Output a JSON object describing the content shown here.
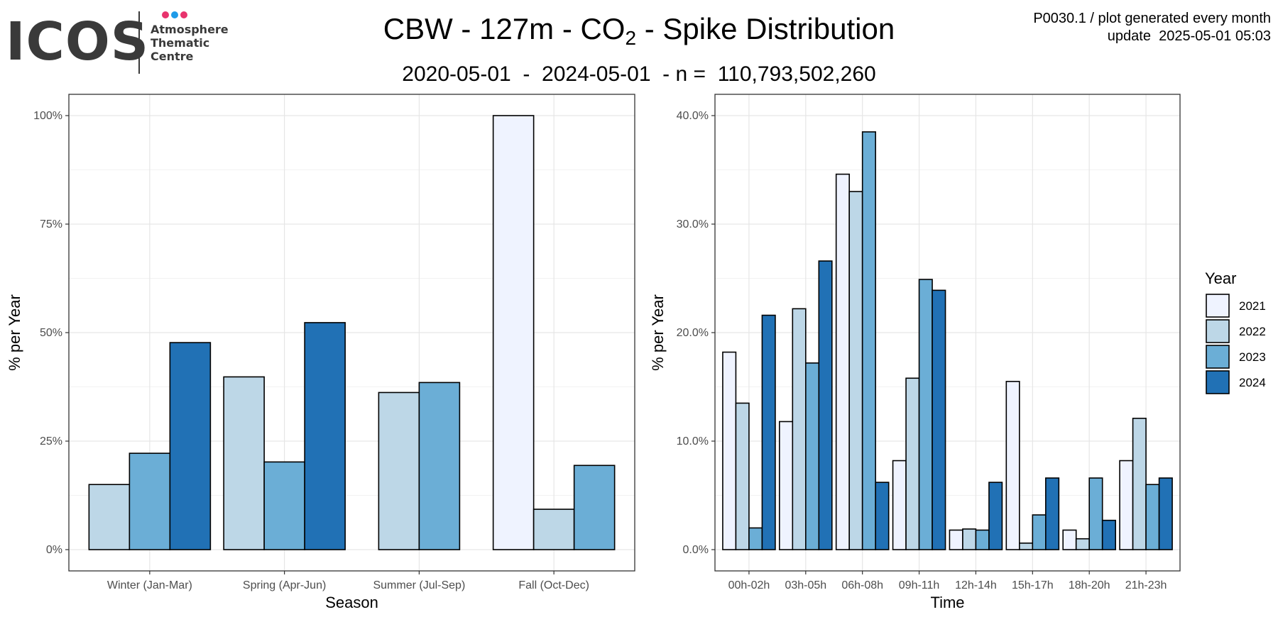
{
  "logo": {
    "text": "ICOS",
    "subtitle_lines": [
      "Atmosphere",
      "Thematic",
      "Centre"
    ],
    "dot_colors": [
      "#e8336d",
      "#1e9be8",
      "#e8336d"
    ]
  },
  "header": {
    "title_prefix": "CBW - 127m - CO",
    "title_sub": "2",
    "title_suffix": " - Spike Distribution",
    "subtitle": "2020-05-01  -  2024-05-01  - n =  110,793,502,260",
    "meta_line1": "P0030.1 / plot generated every month",
    "meta_line2": "update  2025-05-01 05:03"
  },
  "colors": {
    "2021": "#eff3ff",
    "2022": "#bdd7e7",
    "2023": "#6baed6",
    "2024": "#2171b5"
  },
  "legend": {
    "title": "Year",
    "entries": [
      "2021",
      "2022",
      "2023",
      "2024"
    ]
  },
  "chart_data": [
    {
      "type": "bar",
      "xlabel": "Season",
      "ylabel": "% per Year",
      "ylim": [
        0,
        100
      ],
      "yticks": [
        "0%",
        "25%",
        "50%",
        "75%",
        "100%"
      ],
      "grid": true,
      "legend_position": "right",
      "categories": [
        "Winter (Jan-Mar)",
        "Spring (Apr-Jun)",
        "Summer (Jul-Sep)",
        "Fall (Oct-Dec)"
      ],
      "groups": [
        {
          "category": "Winter (Jan-Mar)",
          "bars": [
            {
              "year": "2022",
              "value": 15.0
            },
            {
              "year": "2023",
              "value": 22.2
            },
            {
              "year": "2024",
              "value": 47.7
            }
          ]
        },
        {
          "category": "Spring (Apr-Jun)",
          "bars": [
            {
              "year": "2022",
              "value": 39.8
            },
            {
              "year": "2023",
              "value": 20.2
            },
            {
              "year": "2024",
              "value": 52.3
            }
          ]
        },
        {
          "category": "Summer (Jul-Sep)",
          "bars": [
            {
              "year": "2022",
              "value": 36.2
            },
            {
              "year": "2023",
              "value": 38.5
            }
          ]
        },
        {
          "category": "Fall (Oct-Dec)",
          "bars": [
            {
              "year": "2021",
              "value": 100.0
            },
            {
              "year": "2022",
              "value": 9.3
            },
            {
              "year": "2023",
              "value": 19.4
            }
          ]
        }
      ]
    },
    {
      "type": "bar",
      "xlabel": "Time",
      "ylabel": "% per Year",
      "ylim": [
        0,
        40
      ],
      "yticks": [
        "0.0%",
        "10.0%",
        "20.0%",
        "30.0%",
        "40.0%"
      ],
      "grid": true,
      "legend_position": "right",
      "categories": [
        "00h-02h",
        "03h-05h",
        "06h-08h",
        "09h-11h",
        "12h-14h",
        "15h-17h",
        "18h-20h",
        "21h-23h"
      ],
      "series": [
        {
          "name": "2021",
          "values": [
            18.2,
            11.8,
            34.6,
            8.2,
            1.8,
            15.5,
            1.8,
            8.2
          ]
        },
        {
          "name": "2022",
          "values": [
            13.5,
            22.2,
            33.0,
            15.8,
            1.9,
            0.6,
            1.0,
            12.1
          ]
        },
        {
          "name": "2023",
          "values": [
            2.0,
            17.2,
            38.5,
            24.9,
            1.8,
            3.2,
            6.6,
            6.0
          ]
        },
        {
          "name": "2024",
          "values": [
            21.6,
            26.6,
            6.2,
            23.9,
            6.2,
            6.6,
            2.7,
            6.6
          ]
        }
      ]
    }
  ]
}
